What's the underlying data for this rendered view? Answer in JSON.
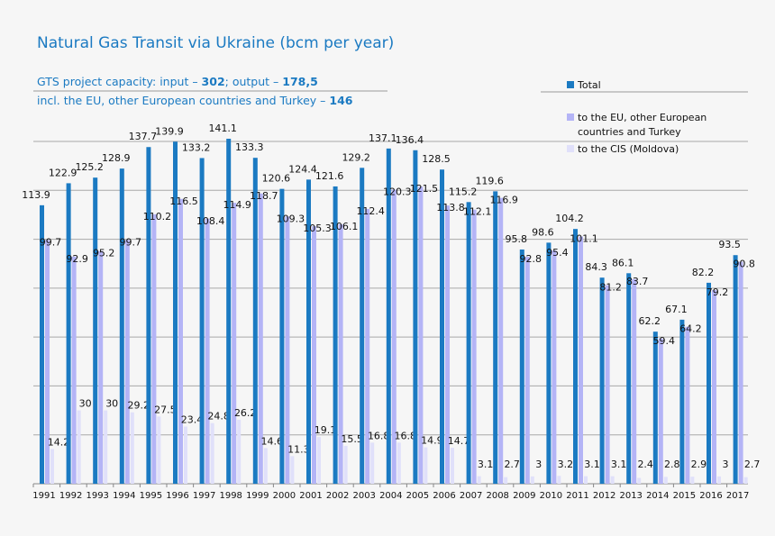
{
  "chart_data": {
    "type": "bar",
    "title": "Natural Gas Transit via Ukraine (bcm per year)",
    "subtitle_lines": {
      "line1_prefix": "GTS project capacity: input – ",
      "line1_input": "302",
      "line1_mid": "; output – ",
      "line1_output": "178,5",
      "line2_prefix": "incl. the EU, other European countries and Turkey – ",
      "line2_value": "146"
    },
    "xlabel": "",
    "ylabel": "",
    "ylim": [
      0,
      140
    ],
    "grid": true,
    "legend_placement": "top-right",
    "categories": [
      "1991",
      "1992",
      "1993",
      "1994",
      "1995",
      "1996",
      "1997",
      "1998",
      "1999",
      "2000",
      "2001",
      "2002",
      "2003",
      "2004",
      "2005",
      "2006",
      "2007",
      "2008",
      "2009",
      "2010",
      "2011",
      "2012",
      "2013",
      "2014",
      "2015",
      "2016",
      "2017"
    ],
    "series": [
      {
        "name": "Total",
        "color": "#1b7ac2",
        "values": [
          113.9,
          122.9,
          125.2,
          128.9,
          137.7,
          139.9,
          133.2,
          141.1,
          133.3,
          120.6,
          124.4,
          121.6,
          129.2,
          137.1,
          136.4,
          128.5,
          115.2,
          119.6,
          95.8,
          98.6,
          104.2,
          84.3,
          86.1,
          62.2,
          67.1,
          82.2,
          93.5
        ]
      },
      {
        "name": "to the EU, other European countries and Turkey",
        "color": "#b4b4f6",
        "values": [
          99.7,
          92.9,
          95.2,
          99.7,
          110.2,
          116.5,
          108.4,
          114.9,
          118.7,
          109.3,
          105.3,
          106.1,
          112.4,
          120.3,
          121.5,
          113.8,
          112.1,
          116.9,
          92.8,
          95.4,
          101.1,
          81.2,
          83.7,
          59.4,
          64.2,
          79.2,
          90.8
        ]
      },
      {
        "name": "to the CIS (Moldova)",
        "color": "#e0e0fa",
        "values": [
          14.2,
          30,
          30,
          29.2,
          27.5,
          23.4,
          24.8,
          26.2,
          14.6,
          11.3,
          19.1,
          15.5,
          16.8,
          16.8,
          14.9,
          14.7,
          3.1,
          2.7,
          3,
          3.2,
          3.1,
          3.1,
          2.4,
          2.8,
          2.9,
          3,
          2.7
        ]
      }
    ]
  }
}
